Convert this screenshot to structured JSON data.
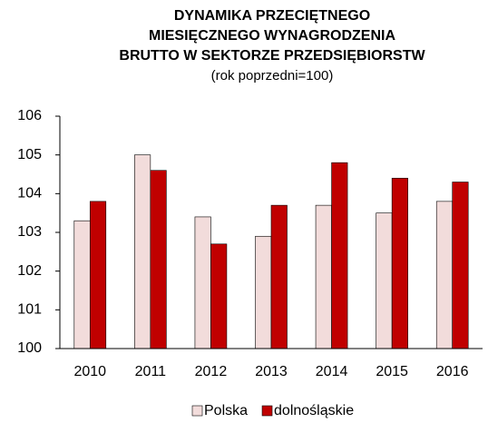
{
  "chart_data": {
    "type": "bar",
    "title": [
      "DYNAMIKA PRZECIĘTNEGO",
      "MIESIĘCZNEGO WYNAGRODZENIA",
      "BRUTTO W SEKTORZE PRZEDSIĘBIORSTW"
    ],
    "subtitle": "(rok poprzedni=100)",
    "categories": [
      "2010",
      "2011",
      "2012",
      "2013",
      "2014",
      "2015",
      "2016"
    ],
    "series": [
      {
        "name": "Polska",
        "color": "#f2dcdb",
        "values": [
          103.3,
          105.0,
          103.4,
          102.9,
          103.7,
          103.5,
          103.8
        ]
      },
      {
        "name": "dolnośląskie",
        "color": "#c00000",
        "values": [
          103.8,
          104.6,
          102.7,
          103.7,
          104.8,
          104.4,
          104.3
        ]
      }
    ],
    "ylim": [
      100,
      106
    ],
    "yticks": [
      100,
      101,
      102,
      103,
      104,
      105,
      106
    ],
    "grid": false,
    "legend": "bottom"
  }
}
